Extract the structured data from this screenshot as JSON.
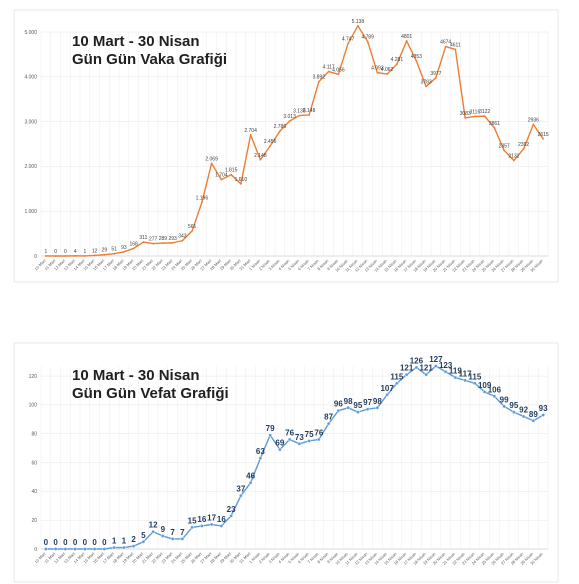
{
  "chart_data": [
    {
      "type": "line",
      "title": "10 Mart - 30 Nisan",
      "subtitle": "Gün Gün Vaka Grafiği",
      "x": [
        "10 Mart",
        "11 Mart",
        "12 Mart",
        "13 Mart",
        "14 Mart",
        "15 Mart",
        "16 Mart",
        "17 Mart",
        "18 Mart",
        "19 Mart",
        "20 Mart",
        "21 Mart",
        "22 Mart",
        "23 Mart",
        "24 Mart",
        "25 Mart",
        "26 Mart",
        "27 Mart",
        "28 Mart",
        "29 Mart",
        "30 Mart",
        "31 Mart",
        "1 Nisan",
        "2 Nisan",
        "3 Nisan",
        "4 Nisan",
        "5 Nisan",
        "6 Nisan",
        "7 Nisan",
        "8 Nisan",
        "9 Nisan",
        "10 Nisan",
        "11 Nisan",
        "12 Nisan",
        "13 Nisan",
        "14 Nisan",
        "15 Nisan",
        "16 Nisan",
        "17 Nisan",
        "18 Nisan",
        "19 Nisan",
        "20 Nisan",
        "21 Nisan",
        "22 Nisan",
        "23 Nisan",
        "24 Nisan",
        "25 Nisan",
        "26 Nisan",
        "27 Nisan",
        "28 Nisan",
        "29 Nisan",
        "30 Nisan"
      ],
      "values": [
        1,
        0,
        0,
        4,
        1,
        12,
        29,
        51,
        93,
        168,
        311,
        277,
        289,
        293,
        343,
        561,
        1196,
        2069,
        1704,
        1815,
        1610,
        2704,
        2148,
        2456,
        2786,
        3013,
        3135,
        3148,
        3892,
        4117,
        4056,
        4747,
        5138,
        4789,
        4093,
        4062,
        4281,
        4801,
        4353,
        3783,
        3977,
        4674,
        4611,
        3083,
        3116,
        3122,
        2861,
        2357,
        2131,
        2392,
        2936,
        2615
      ],
      "data_labels": [
        "1",
        "0",
        "0",
        "4",
        "1",
        "12",
        "29",
        "51",
        "93",
        "168",
        "311",
        "277",
        "289",
        "293",
        "343",
        "561",
        "1.196",
        "2.069",
        "1.704",
        "1.815",
        "1.610",
        "2.704",
        "2.148",
        "2.456",
        "2.786",
        "3.013",
        "3.135",
        "3.148",
        "3.892",
        "4.117",
        "4.056",
        "4.747",
        "5.138",
        "4.789",
        "4.093",
        "4.062",
        "4.281",
        "4801",
        "4353",
        "3783",
        "3977",
        "4674",
        "4611",
        "3083",
        "3116",
        "3122",
        "2861",
        "2357",
        "2131",
        "2392",
        "2936",
        "2615"
      ],
      "yticks": [
        "0",
        "1.000",
        "2.000",
        "3.000",
        "4.000",
        "5.000"
      ],
      "ylim": [
        0,
        5000
      ],
      "color": "#ed7d31",
      "grid": true
    },
    {
      "type": "line",
      "title": "10 Mart - 30 Nisan",
      "subtitle": "Gün Gün Vefat Grafiği",
      "x": [
        "10 Mart",
        "11 Mart",
        "12 Mart",
        "13 Mart",
        "14 Mart",
        "15 Mart",
        "16 Mart",
        "17 Mart",
        "18 Mart",
        "19 Mart",
        "20 Mart",
        "21 Mart",
        "22 Mart",
        "23 Mart",
        "24 Mart",
        "25 Mart",
        "26 Mart",
        "27 Mart",
        "28 Mart",
        "29 Mart",
        "30 Mart",
        "31 Mart",
        "1 Nisan",
        "2 Nisan",
        "3 Nisan",
        "4 Nisan",
        "5 Nisan",
        "6 Nisan",
        "7 Nisan",
        "8 Nisan",
        "9 Nisan",
        "10 Nisan",
        "11 Nisan",
        "12 Nisan",
        "13 Nisan",
        "14 Nisan",
        "15 Nisan",
        "16 Nisan",
        "17 Nisan",
        "18 Nisan",
        "19 Nisan",
        "20 Nisan",
        "21 Nisan",
        "22 Nisan",
        "23 Nisan",
        "24 Nisan",
        "25 Nisan",
        "26 Nisan",
        "27 Nisan",
        "28 Nisan",
        "29 Nisan",
        "30 Nisan"
      ],
      "values": [
        0,
        0,
        0,
        0,
        0,
        0,
        0,
        1,
        1,
        2,
        5,
        12,
        9,
        7,
        7,
        15,
        16,
        17,
        16,
        23,
        37,
        46,
        63,
        79,
        69,
        76,
        73,
        75,
        76,
        87,
        96,
        98,
        95,
        97,
        98,
        107,
        115,
        121,
        126,
        121,
        127,
        123,
        119,
        117,
        115,
        109,
        106,
        99,
        95,
        92,
        89,
        93
      ],
      "yticks": [
        "0",
        "20",
        "40",
        "60",
        "80",
        "100",
        "120"
      ],
      "ylim": [
        0,
        127
      ],
      "color": "#5b9bd5",
      "grid": true
    }
  ]
}
